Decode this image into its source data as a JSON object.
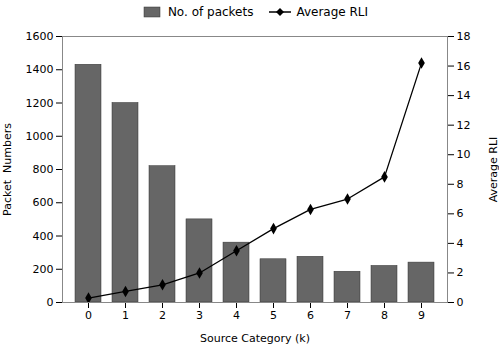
{
  "chart_data": {
    "type": "bar",
    "categories": [
      0,
      1,
      2,
      3,
      4,
      5,
      6,
      7,
      8,
      9
    ],
    "series": [
      {
        "name": "No. of packets",
        "type": "bar",
        "color": "#666666",
        "values": [
          1430,
          1200,
          820,
          500,
          360,
          260,
          275,
          185,
          220,
          240
        ]
      },
      {
        "name": "Average RLI",
        "type": "line",
        "color": "#000000",
        "marker": "diamond",
        "axis": "y2",
        "values": [
          0.3,
          0.75,
          1.2,
          2.0,
          3.5,
          5.0,
          6.3,
          7.0,
          8.5,
          16.2
        ]
      }
    ],
    "xlabel": "Source Category (k)",
    "ylabel": "Packet  Numbers",
    "y2label": "Average RLI",
    "ylim": [
      0,
      1600
    ],
    "yticks": [
      0,
      200,
      400,
      600,
      800,
      1000,
      1200,
      1400,
      1600
    ],
    "y2lim": [
      0,
      18
    ],
    "y2ticks": [
      0,
      2,
      4,
      6,
      8,
      10,
      12,
      14,
      16,
      18
    ],
    "legend": "upper center",
    "grid": false
  }
}
